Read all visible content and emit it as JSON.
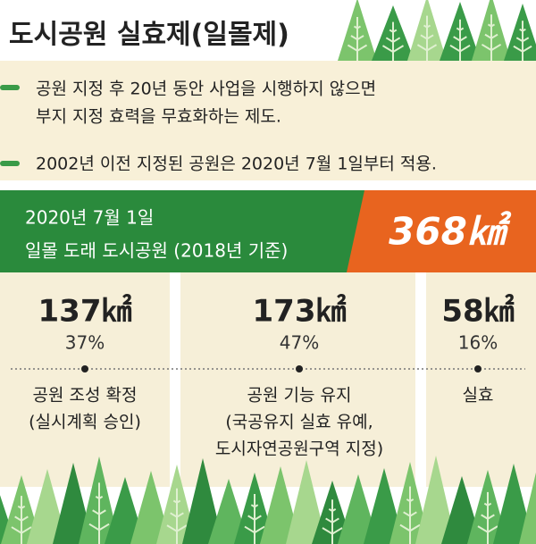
{
  "header": {
    "title": "도시공원 실효제(일몰제)"
  },
  "notes": [
    {
      "lines": [
        "공원 지정 후 20년 동안 사업을 시행하지 않으면",
        "부지 지정 효력을 무효화하는 제도."
      ]
    },
    {
      "lines": [
        "2002년 이전 지정된 공원은 2020년 7월 1일부터 적용."
      ]
    }
  ],
  "banner": {
    "lines": [
      "2020년 7월 1일",
      "일몰 도래 도시공원 (2018년 기준)"
    ],
    "total": "368㎢"
  },
  "columns": [
    {
      "area": "137㎢",
      "share": "37%",
      "lines": [
        "공원 조성 확정",
        "(실시계획 승인)"
      ]
    },
    {
      "area": "173㎢",
      "share": "47%",
      "lines": [
        "공원 기능 유지",
        "(국공유지 실효 유예,",
        "도시자연공원구역 지정)"
      ]
    },
    {
      "area": "58㎢",
      "share": "16%",
      "lines": [
        "실효"
      ]
    }
  ]
}
